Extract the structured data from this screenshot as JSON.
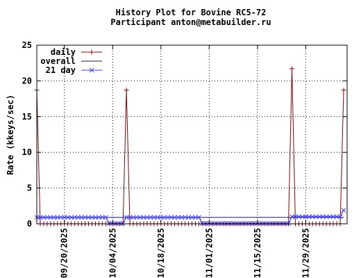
{
  "chart_data": {
    "type": "line",
    "title": "History Plot for Bovine RC5-72",
    "subtitle": "Participant anton@metabuilder.ru",
    "xlabel": "",
    "ylabel": "Rate (kkeys/sec)",
    "ylim": [
      0,
      25
    ],
    "yticks": [
      "0",
      "5",
      "10",
      "15",
      "20",
      "25"
    ],
    "xlim": [
      "2025-09-12",
      "2025-12-11"
    ],
    "xticks": [
      {
        "date": "2025-09-20",
        "label": "09/20/2025"
      },
      {
        "date": "2025-10-04",
        "label": "10/04/2025"
      },
      {
        "date": "2025-10-18",
        "label": "10/18/2025"
      },
      {
        "date": "2025-11-01",
        "label": "11/01/2025"
      },
      {
        "date": "2025-11-15",
        "label": "11/15/2025"
      },
      {
        "date": "2025-11-29",
        "label": "11/29/2025"
      }
    ],
    "grid": true,
    "legend_position": "top-left",
    "series": [
      {
        "name": "daily",
        "color": "#8b0000",
        "marker": "plus",
        "points": [
          {
            "x": "2025-09-12",
            "y": 18.7
          },
          {
            "x": "2025-09-13",
            "y": 0
          },
          {
            "x": "2025-09-26",
            "y": 0
          },
          {
            "x": "2025-10-03",
            "y": 0
          },
          {
            "x": "2025-10-07",
            "y": 0
          },
          {
            "x": "2025-10-08",
            "y": 18.7
          },
          {
            "x": "2025-10-09",
            "y": 0
          },
          {
            "x": "2025-11-01",
            "y": 0
          },
          {
            "x": "2025-11-20",
            "y": 0
          },
          {
            "x": "2025-11-24",
            "y": 0
          },
          {
            "x": "2025-11-25",
            "y": 21.7
          },
          {
            "x": "2025-11-26",
            "y": 0
          },
          {
            "x": "2025-12-09",
            "y": 0
          },
          {
            "x": "2025-12-10",
            "y": 18.7
          }
        ]
      },
      {
        "name": "overall",
        "color": "#191970",
        "marker": "none",
        "points": [
          {
            "x": "2025-09-12",
            "y": 0.9
          },
          {
            "x": "2025-12-10",
            "y": 0.9
          }
        ]
      },
      {
        "name": "21 day",
        "color": "#4040ff",
        "marker": "x",
        "segments": [
          {
            "from": "2025-09-12",
            "to": "2025-10-02",
            "y": 0.9
          },
          {
            "from": "2025-10-03",
            "to": "2025-10-07",
            "y": 0.05
          },
          {
            "from": "2025-10-08",
            "to": "2025-10-29",
            "y": 0.9
          },
          {
            "from": "2025-10-30",
            "to": "2025-11-24",
            "y": 0.05
          },
          {
            "from": "2025-11-25",
            "to": "2025-12-09",
            "y": 1.0
          },
          {
            "from": "2025-12-10",
            "to": "2025-12-10",
            "y": 1.9
          }
        ]
      }
    ]
  }
}
